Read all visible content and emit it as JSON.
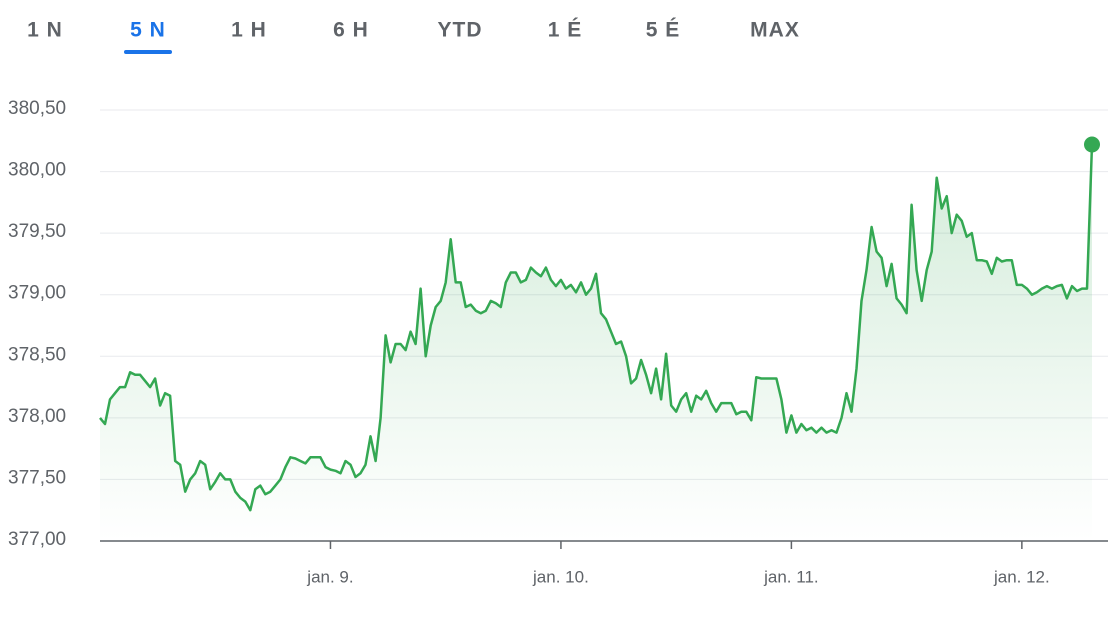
{
  "chart_data": {
    "type": "line",
    "tabs": [
      "1 N",
      "5 N",
      "1 H",
      "6 H",
      "YTD",
      "1 É",
      "5 É",
      "MAX"
    ],
    "active_tab": 1,
    "ylim": [
      377,
      380.5
    ],
    "yticks": [
      {
        "value": 377,
        "label": "377,00"
      },
      {
        "value": 377.5,
        "label": "377,50"
      },
      {
        "value": 378,
        "label": "378,00"
      },
      {
        "value": 378.5,
        "label": "378,50"
      },
      {
        "value": 379,
        "label": "379,00"
      },
      {
        "value": 379.5,
        "label": "379,50"
      },
      {
        "value": 380,
        "label": "380,00"
      },
      {
        "value": 380.5,
        "label": "380,50"
      }
    ],
    "xlim": [
      0,
      198
    ],
    "xticks": [
      {
        "value": 46,
        "label": "jan. 9."
      },
      {
        "value": 92,
        "label": "jan. 10."
      },
      {
        "value": 138,
        "label": "jan. 11."
      },
      {
        "value": 184,
        "label": "jan. 12."
      }
    ],
    "grid": true,
    "series": [
      {
        "color": "#34a853",
        "values": [
          378.0,
          377.95,
          378.15,
          378.2,
          378.25,
          378.25,
          378.37,
          378.35,
          378.35,
          378.3,
          378.25,
          378.32,
          378.1,
          378.2,
          378.18,
          377.65,
          377.62,
          377.4,
          377.5,
          377.55,
          377.65,
          377.62,
          377.42,
          377.48,
          377.55,
          377.5,
          377.5,
          377.4,
          377.35,
          377.32,
          377.25,
          377.42,
          377.45,
          377.38,
          377.4,
          377.45,
          377.5,
          377.6,
          377.68,
          377.67,
          377.65,
          377.63,
          377.68,
          377.68,
          377.68,
          377.6,
          377.58,
          377.57,
          377.55,
          377.65,
          377.62,
          377.52,
          377.55,
          377.62,
          377.85,
          377.65,
          378.0,
          378.67,
          378.45,
          378.6,
          378.6,
          378.55,
          378.7,
          378.6,
          379.05,
          378.5,
          378.75,
          378.9,
          378.95,
          379.1,
          379.45,
          379.1,
          379.1,
          378.9,
          378.92,
          378.87,
          378.85,
          378.87,
          378.95,
          378.93,
          378.9,
          379.1,
          379.18,
          379.18,
          379.1,
          379.12,
          379.22,
          379.18,
          379.15,
          379.22,
          379.12,
          379.07,
          379.12,
          379.05,
          379.08,
          379.02,
          379.1,
          379.0,
          379.05,
          379.17,
          378.85,
          378.8,
          378.7,
          378.6,
          378.62,
          378.5,
          378.28,
          378.32,
          378.47,
          378.35,
          378.2,
          378.4,
          378.15,
          378.52,
          378.1,
          378.05,
          378.15,
          378.2,
          378.05,
          378.18,
          378.15,
          378.22,
          378.12,
          378.05,
          378.12,
          378.12,
          378.12,
          378.03,
          378.05,
          378.05,
          377.98,
          378.33,
          378.32,
          378.32,
          378.32,
          378.32,
          378.15,
          377.88,
          378.02,
          377.88,
          377.95,
          377.9,
          377.92,
          377.88,
          377.92,
          377.88,
          377.9,
          377.88,
          378.0,
          378.2,
          378.05,
          378.4,
          378.95,
          379.2,
          379.55,
          379.35,
          379.3,
          379.07,
          379.25,
          378.97,
          378.92,
          378.85,
          379.73,
          379.2,
          378.95,
          379.2,
          379.35,
          379.95,
          379.7,
          379.8,
          379.5,
          379.65,
          379.6,
          379.47,
          379.5,
          379.28,
          379.28,
          379.27,
          379.17,
          379.3,
          379.27,
          379.28,
          379.28,
          379.08,
          379.08,
          379.05,
          379.0,
          379.02,
          379.05,
          379.07,
          379.05,
          379.07,
          379.08,
          378.97,
          379.07,
          379.03,
          379.05,
          379.05,
          380.22
        ]
      }
    ]
  }
}
